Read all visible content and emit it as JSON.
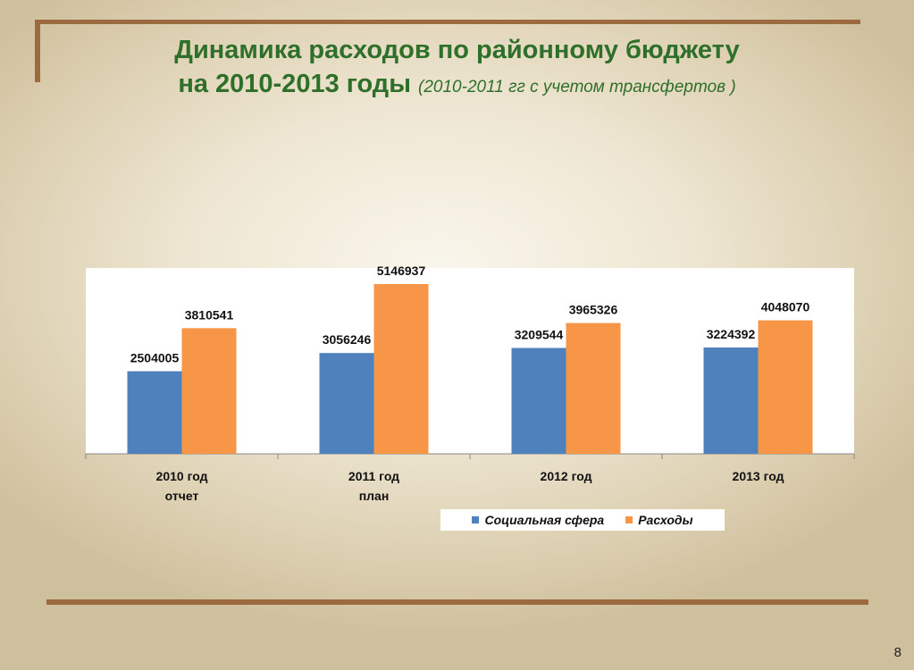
{
  "slide": {
    "title_line1": "Динамика расходов по районному бюджету",
    "title_line2": "на 2010-2013 годы",
    "title_sub": "(2010-2011 гг с учетом трансфертов )",
    "page_number": "8"
  },
  "colors": {
    "social": "#4f81bd",
    "expenses": "#f79646",
    "title": "#2e6f2a",
    "frame": "#9c6a3e"
  },
  "chart_data": {
    "type": "bar",
    "categories": [
      [
        "2010 год",
        "отчет"
      ],
      [
        "2011 год",
        "план"
      ],
      [
        "2012 год"
      ],
      [
        "2013 год"
      ]
    ],
    "series": [
      {
        "name": "Социальная сфера",
        "values": [
          2504005,
          3056246,
          3209544,
          3224392
        ]
      },
      {
        "name": "Расходы",
        "values": [
          3810541,
          5146937,
          3965326,
          4048070
        ]
      }
    ],
    "data_labels": true,
    "legend_position": "bottom"
  }
}
